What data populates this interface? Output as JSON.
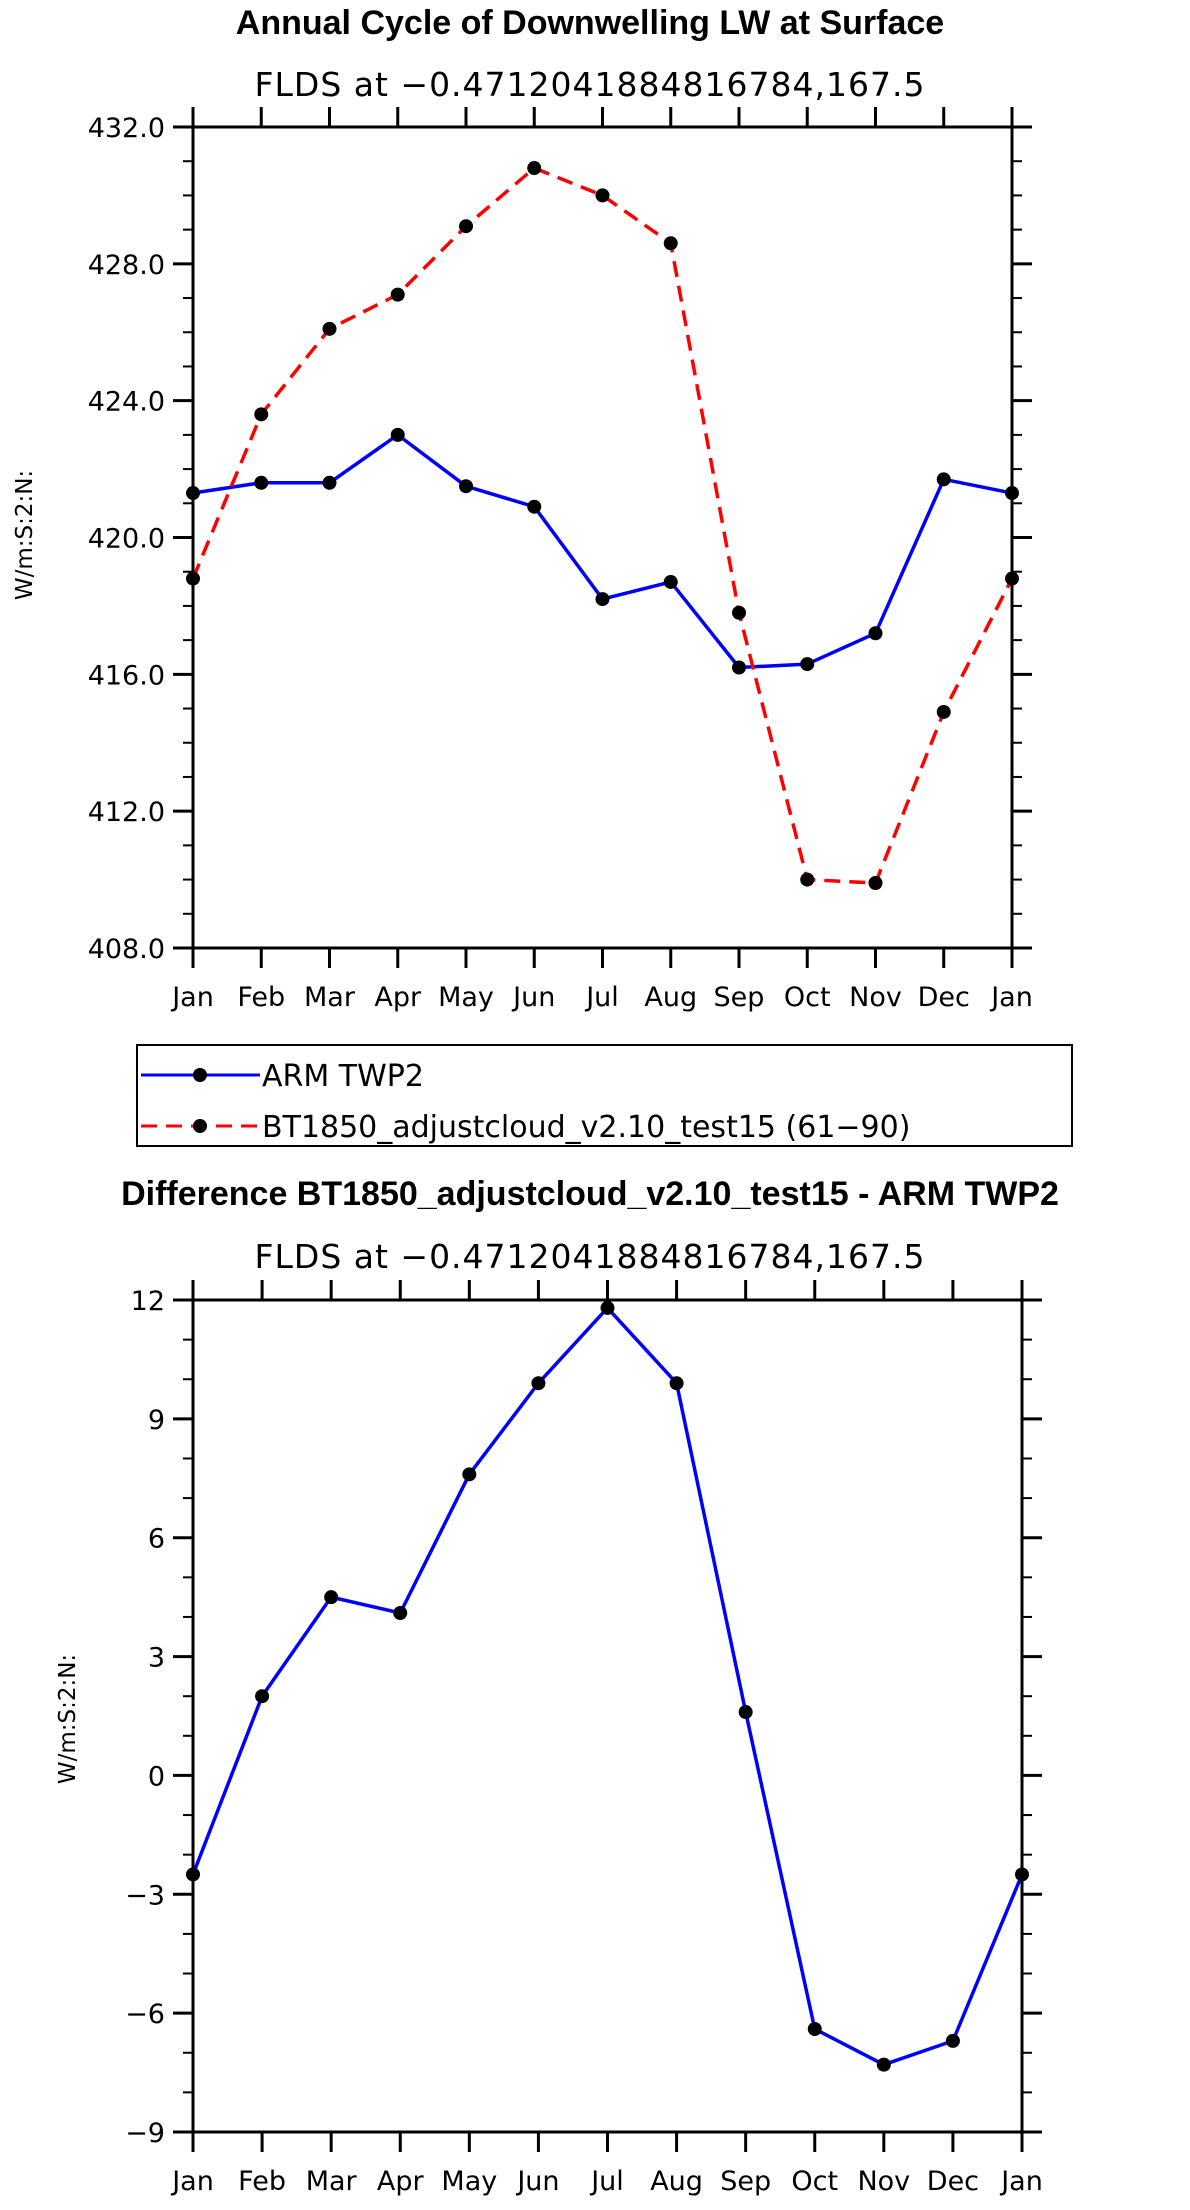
{
  "chart_data": [
    {
      "type": "line",
      "title": "Annual Cycle of Downwelling LW at Surface",
      "subtitle": "FLDS at −0.4712041884816784,167.5",
      "ylabel": "W/m:S:2:N:",
      "xlabel": "",
      "categories": [
        "Jan",
        "Feb",
        "Mar",
        "Apr",
        "May",
        "Jun",
        "Jul",
        "Aug",
        "Sep",
        "Oct",
        "Nov",
        "Dec",
        "Jan"
      ],
      "ylim": [
        408,
        432
      ],
      "yticks": [
        408,
        412,
        416,
        420,
        424,
        428,
        432
      ],
      "ytick_labels": [
        "408.0",
        "412.0",
        "416.0",
        "420.0",
        "424.0",
        "428.0",
        "432.0"
      ],
      "series": [
        {
          "name": "ARM TWP2",
          "color": "#0000ff",
          "dash": "solid",
          "values": [
            421.3,
            421.6,
            421.6,
            423.0,
            421.5,
            420.9,
            418.2,
            418.7,
            416.2,
            416.3,
            417.2,
            421.7,
            421.3
          ]
        },
        {
          "name": "BT1850_adjustcloud_v2.10_test15 (61−90)",
          "color": "#ff0000",
          "dash": "dashed",
          "values": [
            418.8,
            423.6,
            426.1,
            427.1,
            429.1,
            430.8,
            430.0,
            428.6,
            417.8,
            410.0,
            409.9,
            414.9,
            418.8
          ]
        }
      ],
      "legend": "below"
    },
    {
      "type": "line",
      "title": "Difference BT1850_adjustcloud_v2.10_test15 - ARM TWP2",
      "subtitle": "FLDS at −0.4712041884816784,167.5",
      "ylabel": "W/m:S:2:N:",
      "xlabel": "",
      "categories": [
        "Jan",
        "Feb",
        "Mar",
        "Apr",
        "May",
        "Jun",
        "Jul",
        "Aug",
        "Sep",
        "Oct",
        "Nov",
        "Dec",
        "Jan"
      ],
      "ylim": [
        -9,
        12
      ],
      "yticks": [
        -9,
        -6,
        -3,
        0,
        3,
        6,
        9,
        12
      ],
      "ytick_labels": [
        "−9",
        "−6",
        "−3",
        "0",
        "3",
        "6",
        "9",
        "12"
      ],
      "series": [
        {
          "name": "Difference",
          "color": "#0000ff",
          "dash": "solid",
          "values": [
            -2.5,
            2.0,
            4.5,
            4.1,
            7.6,
            9.9,
            11.8,
            9.9,
            1.6,
            -6.4,
            -7.3,
            -6.7,
            -2.5
          ]
        }
      ]
    }
  ]
}
